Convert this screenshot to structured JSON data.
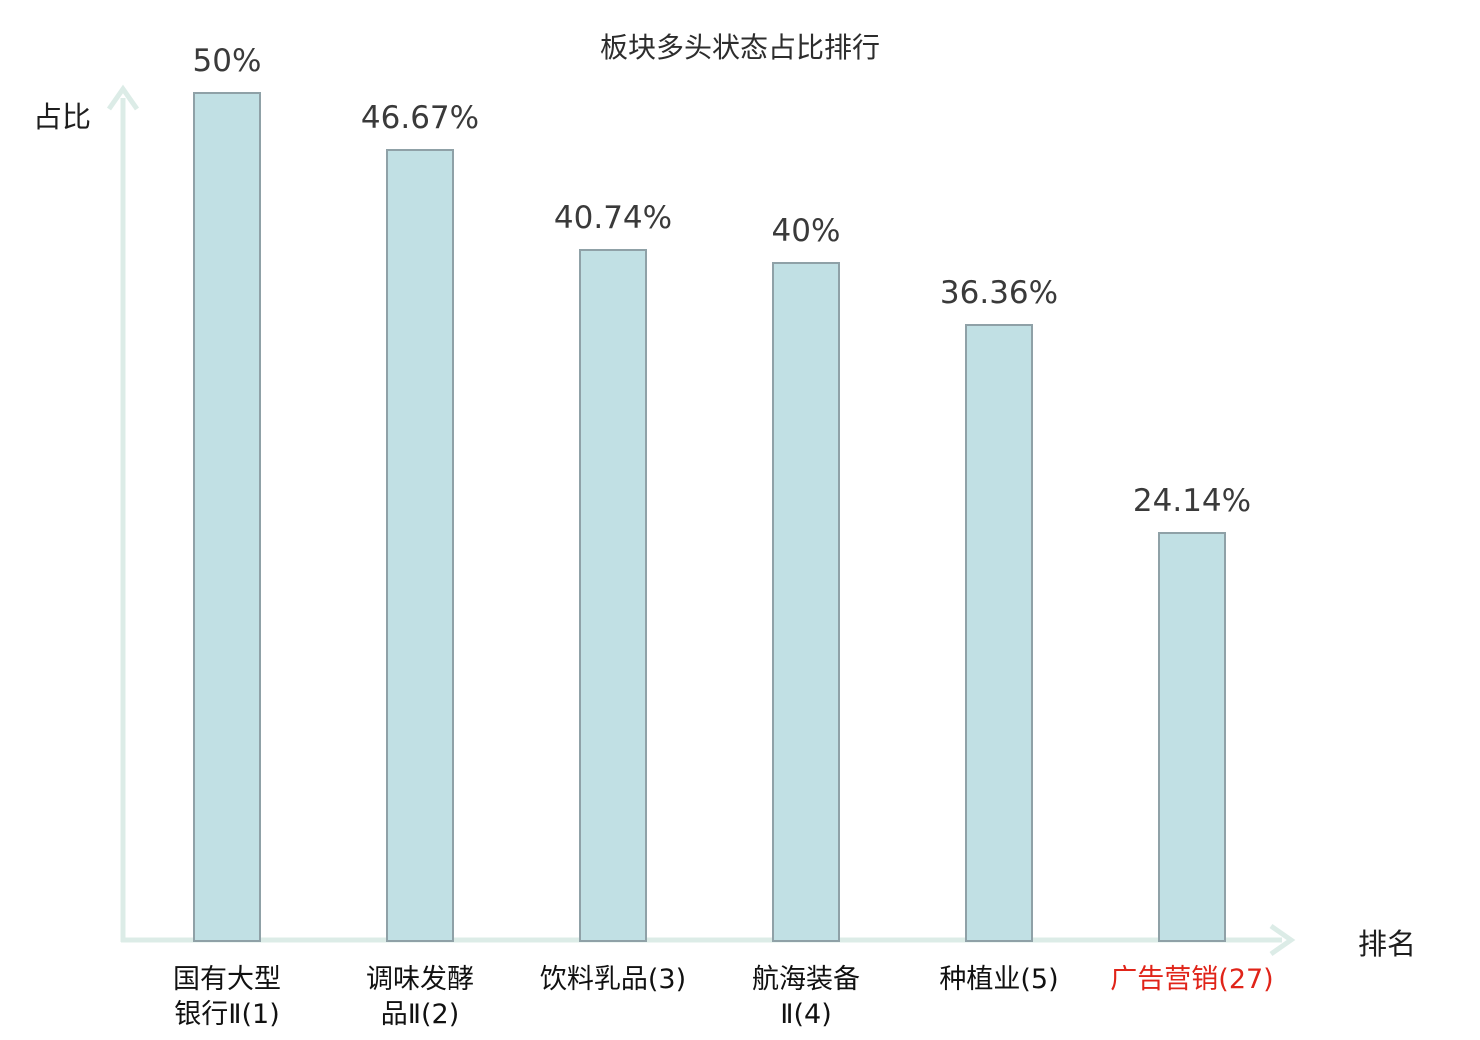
{
  "chart_data": {
    "type": "bar",
    "title": "板块多头状态占比排行",
    "ylabel": "占比",
    "xlabel": "排名",
    "categories": [
      "国有大型银行Ⅱ(1)",
      "调味发酵品Ⅱ(2)",
      "饮料乳品(3)",
      "航海装备Ⅱ(4)",
      "种植业(5)",
      "广告营销(27)"
    ],
    "categories_display": [
      "国有大型\n银行Ⅱ(1)",
      "调味发酵\n品Ⅱ(2)",
      "饮料乳品(3)",
      "航海装备\nⅡ(4)",
      "种植业(5)",
      "广告营销(27)"
    ],
    "ranks": [
      1,
      2,
      3,
      4,
      5,
      27
    ],
    "values": [
      50,
      46.67,
      40.74,
      40,
      36.36,
      24.14
    ],
    "value_labels": [
      "50%",
      "46.67%",
      "40.74%",
      "40%",
      "36.36%",
      "24.14%"
    ],
    "unit": "%",
    "ylim": [
      0,
      52
    ],
    "grid": false,
    "legend": "none",
    "data_labels": true,
    "highlight_index": 5,
    "colors": {
      "bar_fill": "#c1e0e4",
      "bar_border": "#8fa1a7",
      "axis": "#dcece7",
      "title_text": "#2d2d2d",
      "value_text": "#3a3a3a",
      "category_text": "#111111",
      "highlight_text": "#e02419"
    }
  }
}
